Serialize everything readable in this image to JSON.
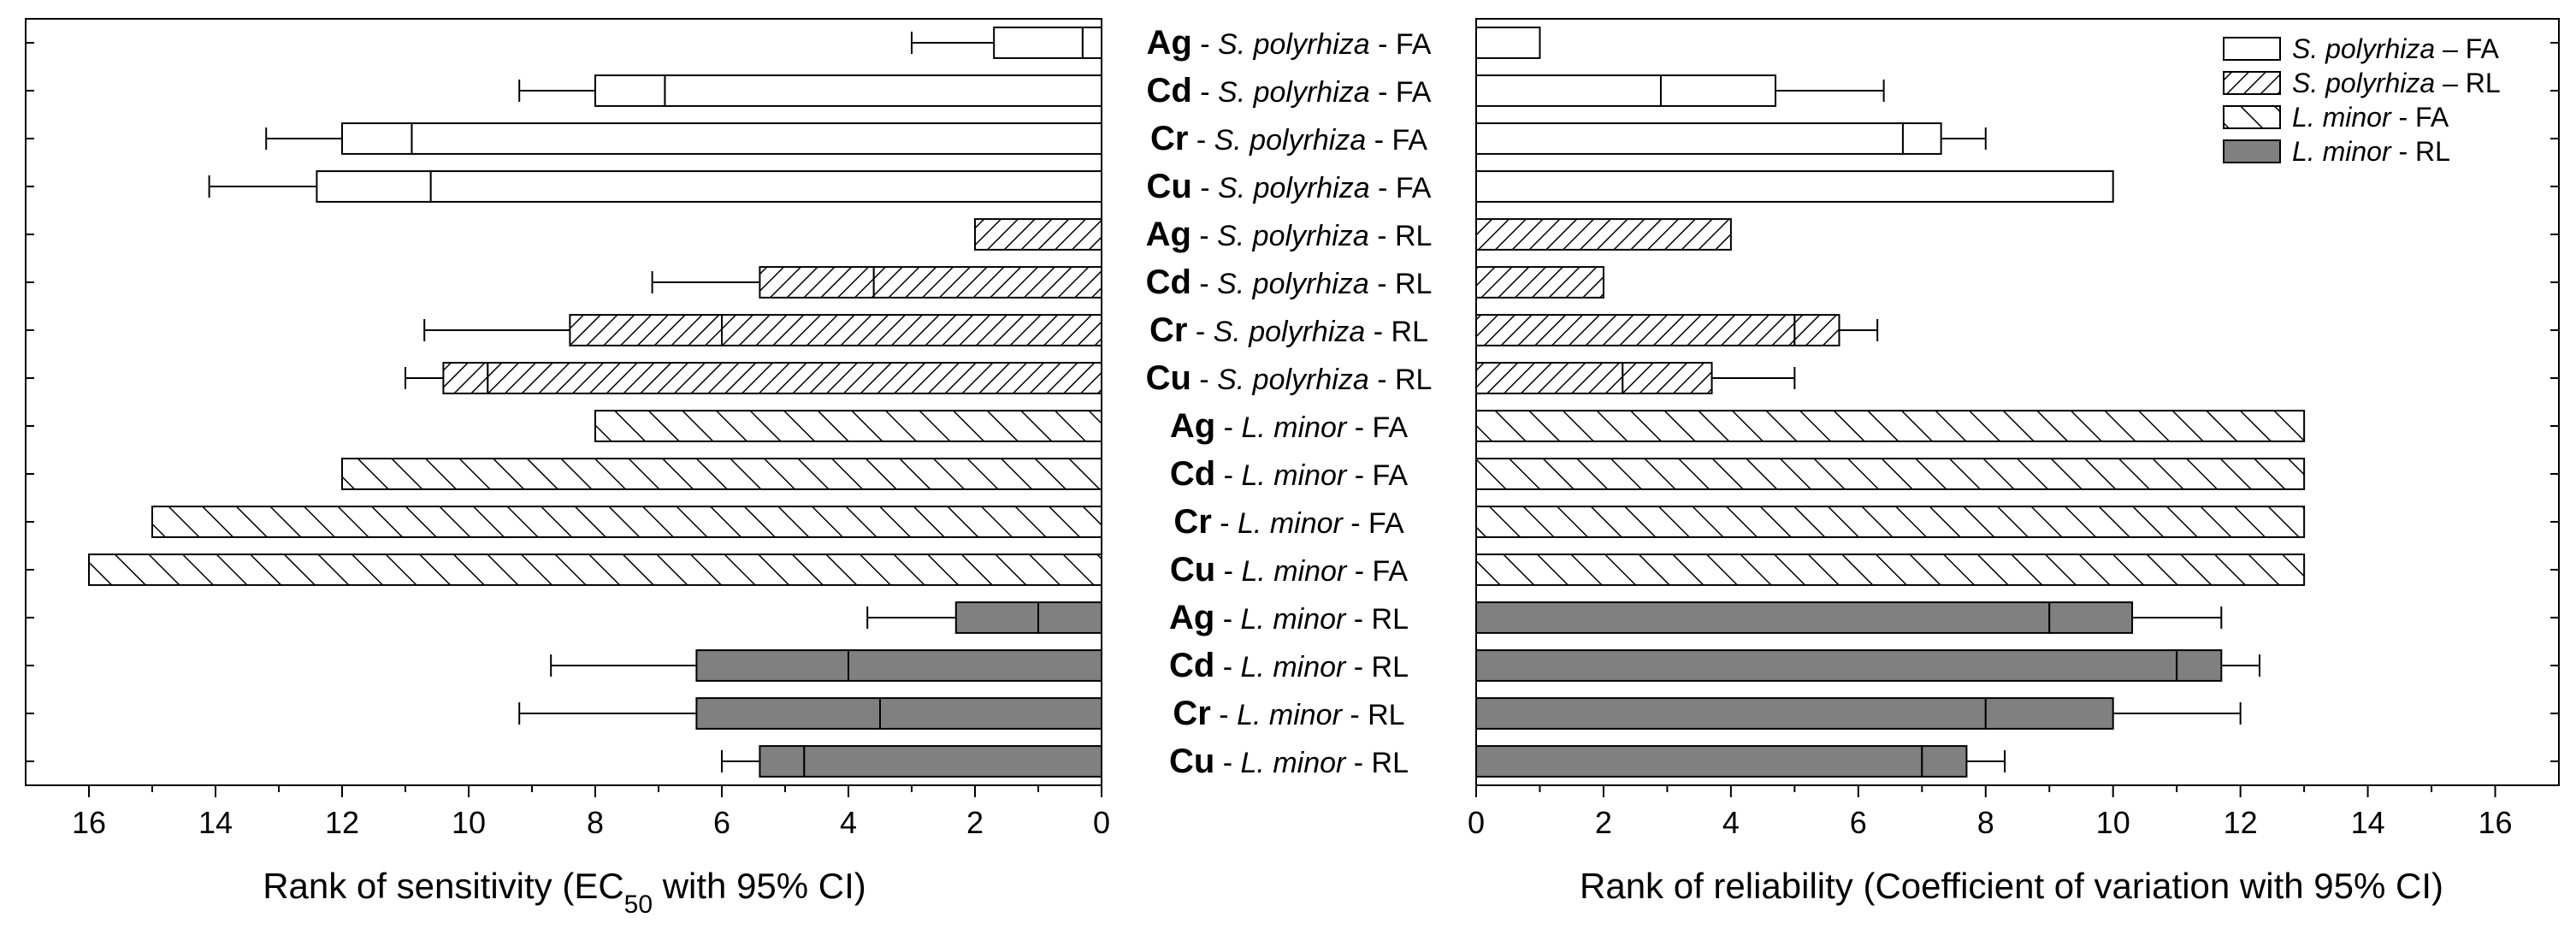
{
  "chart_data": [
    {
      "type": "bar",
      "orientation": "horizontal",
      "x_direction": "reversed",
      "xlabel_prefix": "Rank of sensitivity (EC",
      "xlabel_sub": "50",
      "xlabel_suffix": " with 95% CI)",
      "xlim": [
        0,
        17
      ],
      "xticks": [
        "0",
        "2",
        "4",
        "6",
        "8",
        "10",
        "12",
        "14",
        "16"
      ],
      "bars": [
        {
          "value": 0.3,
          "ci_low": 1.7,
          "ci_high": 3.0
        },
        {
          "value": 6.9,
          "ci_low": 8.0,
          "ci_high": 9.2
        },
        {
          "value": 10.9,
          "ci_low": 12.0,
          "ci_high": 13.2
        },
        {
          "value": 10.6,
          "ci_low": 12.4,
          "ci_high": 14.1
        },
        {
          "value": 2.0
        },
        {
          "value": 3.6,
          "ci_low": 5.4,
          "ci_high": 7.1
        },
        {
          "value": 6.0,
          "ci_low": 8.4,
          "ci_high": 10.7
        },
        {
          "value": 9.7,
          "ci_low": 10.4,
          "ci_high": 11.0
        },
        {
          "value": 8.0
        },
        {
          "value": 12.0
        },
        {
          "value": 15.0
        },
        {
          "value": 16.0
        },
        {
          "value": 1.0,
          "ci_low": 2.3,
          "ci_high": 3.7
        },
        {
          "value": 4.0,
          "ci_low": 6.4,
          "ci_high": 8.7
        },
        {
          "value": 3.5,
          "ci_low": 6.4,
          "ci_high": 9.2
        },
        {
          "value": 4.7,
          "ci_low": 5.4,
          "ci_high": 6.0
        }
      ]
    },
    {
      "type": "bar",
      "orientation": "horizontal",
      "xlabel": "Rank of reliability (Coefficient of variation with 95% CI)",
      "xlim": [
        0,
        17
      ],
      "xticks": [
        "0",
        "2",
        "4",
        "6",
        "8",
        "10",
        "12",
        "14",
        "16"
      ],
      "bars": [
        {
          "value": 1.0
        },
        {
          "value": 2.9,
          "ci_low": 4.7,
          "ci_high": 6.4
        },
        {
          "value": 6.7,
          "ci_low": 7.3,
          "ci_high": 8.0
        },
        {
          "value": 10.0
        },
        {
          "value": 4.0
        },
        {
          "value": 2.0
        },
        {
          "value": 5.0,
          "ci_low": 5.7,
          "ci_high": 6.3
        },
        {
          "value": 2.3,
          "ci_low": 3.7,
          "ci_high": 5.0
        },
        {
          "value": 13.0
        },
        {
          "value": 13.0
        },
        {
          "value": 13.0
        },
        {
          "value": 13.0
        },
        {
          "value": 9.0,
          "ci_low": 10.3,
          "ci_high": 11.7
        },
        {
          "value": 11.0,
          "ci_low": 11.7,
          "ci_high": 12.3
        },
        {
          "value": 8.0,
          "ci_low": 10.0,
          "ci_high": 12.0
        },
        {
          "value": 7.0,
          "ci_low": 7.7,
          "ci_high": 8.3
        }
      ]
    }
  ],
  "rows": [
    {
      "metal": "Ag",
      "species": "S. polyrhiza",
      "method": "FA",
      "group": "sp_fa"
    },
    {
      "metal": "Cd",
      "species": "S. polyrhiza",
      "method": "FA",
      "group": "sp_fa"
    },
    {
      "metal": "Cr",
      "species": "S. polyrhiza",
      "method": "FA",
      "group": "sp_fa"
    },
    {
      "metal": "Cu",
      "species": "S. polyrhiza",
      "method": "FA",
      "group": "sp_fa"
    },
    {
      "metal": "Ag",
      "species": "S. polyrhiza",
      "method": "RL",
      "group": "sp_rl"
    },
    {
      "metal": "Cd",
      "species": "S. polyrhiza",
      "method": "RL",
      "group": "sp_rl"
    },
    {
      "metal": "Cr",
      "species": "S. polyrhiza",
      "method": "RL",
      "group": "sp_rl"
    },
    {
      "metal": "Cu",
      "species": "S. polyrhiza",
      "method": "RL",
      "group": "sp_rl"
    },
    {
      "metal": "Ag",
      "species": "L. minor",
      "method": "FA",
      "group": "lm_fa"
    },
    {
      "metal": "Cd",
      "species": "L. minor",
      "method": "FA",
      "group": "lm_fa"
    },
    {
      "metal": "Cr",
      "species": "L. minor",
      "method": "FA",
      "group": "lm_fa"
    },
    {
      "metal": "Cu",
      "species": "L. minor",
      "method": "FA",
      "group": "lm_fa"
    },
    {
      "metal": "Ag",
      "species": "L. minor",
      "method": "RL",
      "group": "lm_rl"
    },
    {
      "metal": "Cd",
      "species": "L. minor",
      "method": "RL",
      "group": "lm_rl"
    },
    {
      "metal": "Cr",
      "species": "L. minor",
      "method": "RL",
      "group": "lm_rl"
    },
    {
      "metal": "Cu",
      "species": "L. minor",
      "method": "RL",
      "group": "lm_rl"
    }
  ],
  "legend": [
    {
      "group": "sp_fa",
      "species": "S. polyrhiza",
      "sep": " – ",
      "method": "FA"
    },
    {
      "group": "sp_rl",
      "species": "S. polyrhiza",
      "sep": " – ",
      "method": "RL"
    },
    {
      "group": "lm_fa",
      "species": "L. minor",
      "sep": " - ",
      "method": "FA"
    },
    {
      "group": "lm_rl",
      "species": "L. minor",
      "sep": " - ",
      "method": "RL"
    }
  ],
  "label_sep": " - ",
  "colors": {
    "axis": "#000000",
    "bar_outline": "#000000",
    "open_fill": "#ffffff",
    "solid_fill": "#808080",
    "hatch": "#000000"
  }
}
